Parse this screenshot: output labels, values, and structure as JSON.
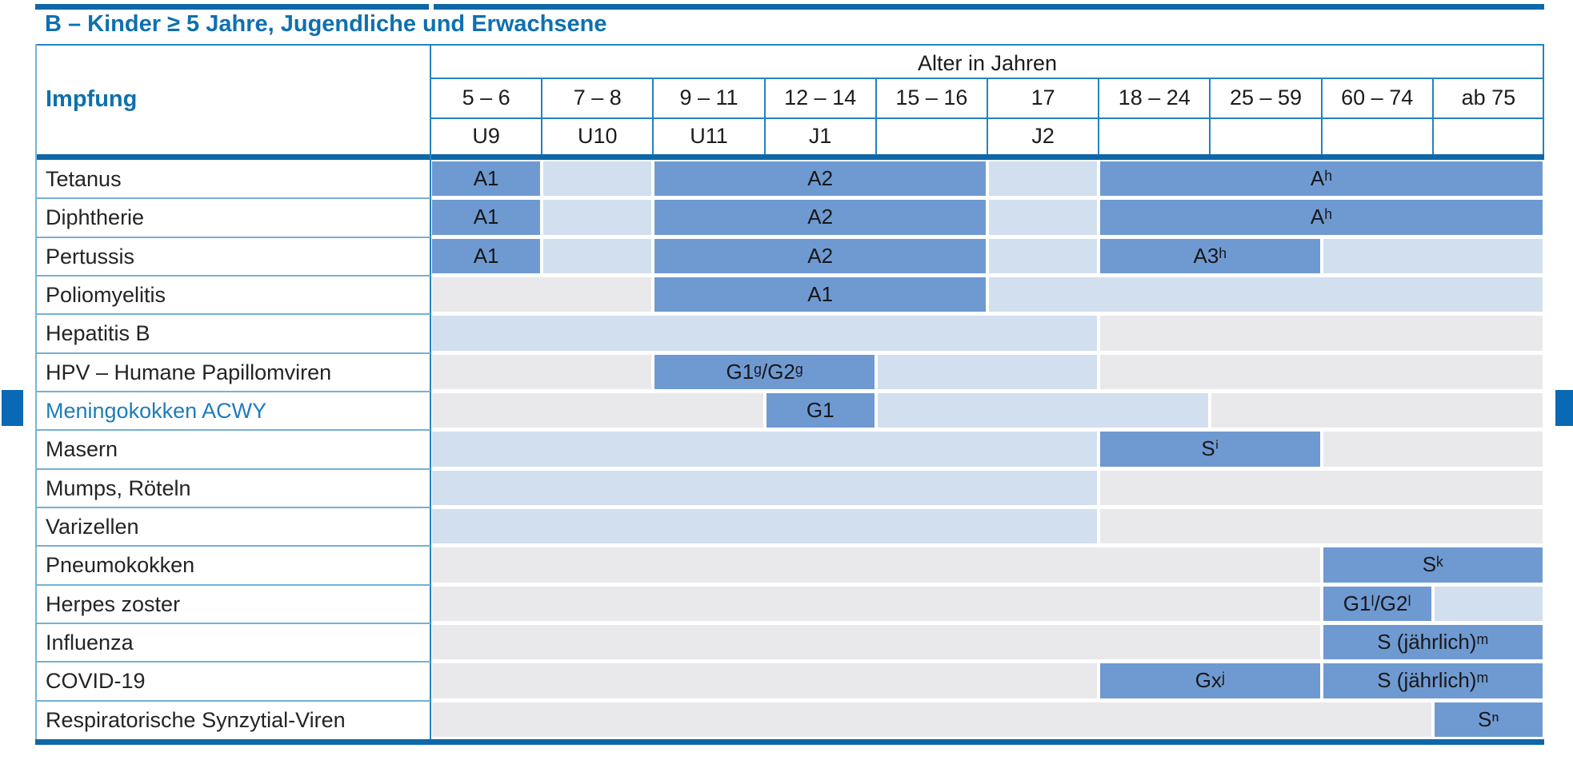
{
  "title": "B – Kinder ≥ 5 Jahre, Jugendliche und Erwachsene",
  "colors": {
    "accent_blue": "#0f70ae",
    "highlight_row_label": "#1e7cba",
    "thick_rule": "#0e67a8",
    "grid_line": "#2583bd",
    "row_separator": "#72b1d6",
    "cell_dark": "#6f9ad1",
    "cell_light": "#d2dfef",
    "cell_gray": "#e9e9eb",
    "edge_marker": "#0a69b4"
  },
  "table": {
    "impfung_header": "Impfung",
    "age_header": "Alter in Jahren",
    "age_columns": [
      "5 – 6",
      "7 – 8",
      "9 – 11",
      "12 – 14",
      "15 – 16",
      "17",
      "18 – 24",
      "25 – 59",
      "60 – 74",
      "ab 75"
    ],
    "exam_row": [
      "U9",
      "U10",
      "U11",
      "J1",
      "",
      "J2",
      "",
      "",
      "",
      ""
    ],
    "rows": [
      {
        "label": "Tetanus",
        "highlight": false,
        "cells": [
          {
            "span": 1,
            "type": "dark",
            "text": "A1"
          },
          {
            "span": 1,
            "type": "light",
            "text": ""
          },
          {
            "span": 3,
            "type": "dark",
            "text": "A2"
          },
          {
            "span": 1,
            "type": "light",
            "text": ""
          },
          {
            "span": 4,
            "type": "dark",
            "text": "Aʰ"
          }
        ]
      },
      {
        "label": "Diphtherie",
        "highlight": false,
        "cells": [
          {
            "span": 1,
            "type": "dark",
            "text": "A1"
          },
          {
            "span": 1,
            "type": "light",
            "text": ""
          },
          {
            "span": 3,
            "type": "dark",
            "text": "A2"
          },
          {
            "span": 1,
            "type": "light",
            "text": ""
          },
          {
            "span": 4,
            "type": "dark",
            "text": "Aʰ"
          }
        ]
      },
      {
        "label": "Pertussis",
        "highlight": false,
        "cells": [
          {
            "span": 1,
            "type": "dark",
            "text": "A1"
          },
          {
            "span": 1,
            "type": "light",
            "text": ""
          },
          {
            "span": 3,
            "type": "dark",
            "text": "A2"
          },
          {
            "span": 1,
            "type": "light",
            "text": ""
          },
          {
            "span": 2,
            "type": "dark",
            "text": "A3ʰ"
          },
          {
            "span": 2,
            "type": "light",
            "text": ""
          }
        ]
      },
      {
        "label": "Poliomyelitis",
        "highlight": false,
        "cells": [
          {
            "span": 2,
            "type": "gray",
            "text": ""
          },
          {
            "span": 3,
            "type": "dark",
            "text": "A1"
          },
          {
            "span": 5,
            "type": "light",
            "text": ""
          }
        ]
      },
      {
        "label": "Hepatitis B",
        "highlight": false,
        "cells": [
          {
            "span": 6,
            "type": "light",
            "text": ""
          },
          {
            "span": 4,
            "type": "gray",
            "text": ""
          }
        ]
      },
      {
        "label": "HPV – Humane Papillomviren",
        "highlight": false,
        "cells": [
          {
            "span": 2,
            "type": "gray",
            "text": ""
          },
          {
            "span": 2,
            "type": "dark",
            "text": "G1ᵍ/G2ᵍ"
          },
          {
            "span": 2,
            "type": "light",
            "text": ""
          },
          {
            "span": 4,
            "type": "gray",
            "text": ""
          }
        ]
      },
      {
        "label": "Meningokokken ACWY",
        "highlight": true,
        "cells": [
          {
            "span": 3,
            "type": "gray",
            "text": ""
          },
          {
            "span": 1,
            "type": "dark",
            "text": "G1"
          },
          {
            "span": 3,
            "type": "light",
            "text": ""
          },
          {
            "span": 3,
            "type": "gray",
            "text": ""
          }
        ]
      },
      {
        "label": "Masern",
        "highlight": false,
        "cells": [
          {
            "span": 6,
            "type": "light",
            "text": ""
          },
          {
            "span": 2,
            "type": "dark",
            "text": "Sⁱ"
          },
          {
            "span": 2,
            "type": "gray",
            "text": ""
          }
        ]
      },
      {
        "label": "Mumps, Röteln",
        "highlight": false,
        "cells": [
          {
            "span": 6,
            "type": "light",
            "text": ""
          },
          {
            "span": 4,
            "type": "gray",
            "text": ""
          }
        ]
      },
      {
        "label": "Varizellen",
        "highlight": false,
        "cells": [
          {
            "span": 6,
            "type": "light",
            "text": ""
          },
          {
            "span": 4,
            "type": "gray",
            "text": ""
          }
        ]
      },
      {
        "label": "Pneumokokken",
        "highlight": false,
        "cells": [
          {
            "span": 8,
            "type": "gray",
            "text": ""
          },
          {
            "span": 2,
            "type": "dark",
            "text": "Sᵏ"
          }
        ]
      },
      {
        "label": "Herpes zoster",
        "highlight": false,
        "cells": [
          {
            "span": 8,
            "type": "gray",
            "text": ""
          },
          {
            "span": 1,
            "type": "dark",
            "text": "G1ˡ/G2ˡ"
          },
          {
            "span": 1,
            "type": "light",
            "text": ""
          }
        ]
      },
      {
        "label": "Influenza",
        "highlight": false,
        "cells": [
          {
            "span": 8,
            "type": "gray",
            "text": ""
          },
          {
            "span": 2,
            "type": "dark",
            "text": "S (jährlich)ᵐ"
          }
        ]
      },
      {
        "label": "COVID-19",
        "highlight": false,
        "cells": [
          {
            "span": 6,
            "type": "gray",
            "text": ""
          },
          {
            "span": 2,
            "type": "dark",
            "text": "Gxʲ"
          },
          {
            "span": 2,
            "type": "dark",
            "text": "S (jährlich)ᵐ"
          }
        ]
      },
      {
        "label": "Respiratorische Synzytial-Viren",
        "highlight": false,
        "cells": [
          {
            "span": 9,
            "type": "gray",
            "text": ""
          },
          {
            "span": 1,
            "type": "dark",
            "text": "Sⁿ"
          }
        ]
      }
    ]
  }
}
